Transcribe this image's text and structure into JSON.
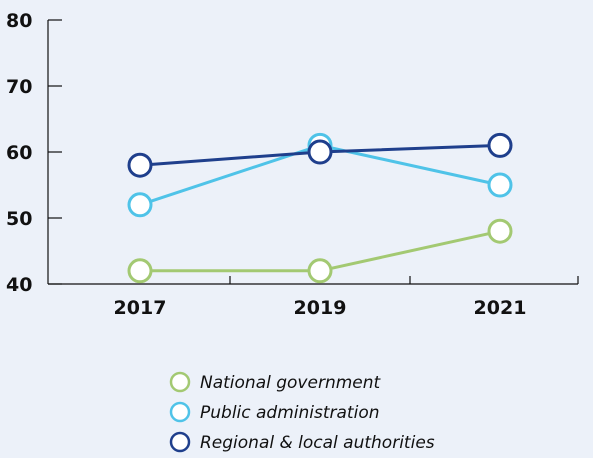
{
  "chart_data": {
    "type": "line",
    "title": "",
    "xlabel": "",
    "ylabel": "",
    "categories": [
      "2017",
      "2019",
      "2021"
    ],
    "ylim": [
      40,
      80
    ],
    "yticks": [
      40,
      50,
      60,
      70,
      80
    ],
    "grid": false,
    "legend_position": "bottom",
    "series": [
      {
        "name": "National government",
        "values": [
          42,
          42,
          48
        ],
        "color": "#a3c972"
      },
      {
        "name": "Public administration",
        "values": [
          52,
          61,
          55
        ],
        "color": "#4fc3e8"
      },
      {
        "name": "Regional & local authorities",
        "values": [
          58,
          60,
          61
        ],
        "color": "#1f3f8c"
      }
    ]
  }
}
